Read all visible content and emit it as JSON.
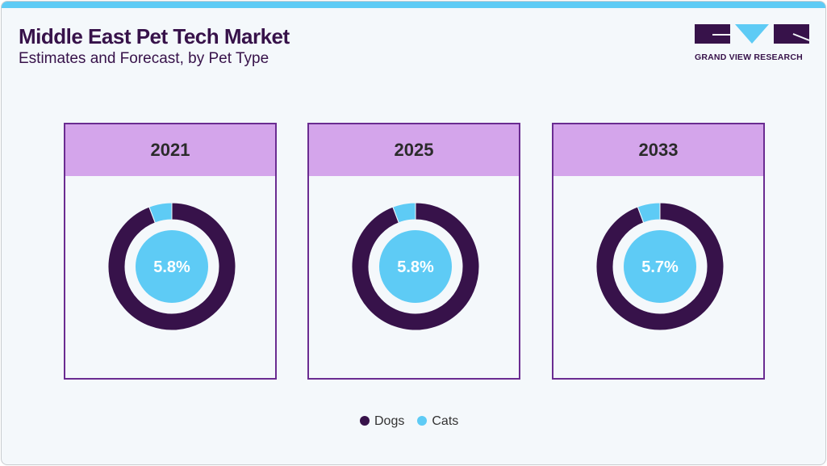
{
  "header": {
    "title": "Middle East Pet Tech Market",
    "subtitle": "Estimates and Forecast, by Pet Type"
  },
  "logo": {
    "text": "GRAND VIEW RESEARCH"
  },
  "colors": {
    "Dogs": "#37124a",
    "Cats": "#5ecbf5",
    "panel_header": "#d4a5eb",
    "panel_border": "#6a2c91"
  },
  "chart_data": [
    {
      "type": "pie",
      "title": "2021",
      "categories": [
        "Dogs",
        "Cats"
      ],
      "values": [
        94.2,
        5.8
      ],
      "center_label": "5.8%"
    },
    {
      "type": "pie",
      "title": "2025",
      "categories": [
        "Dogs",
        "Cats"
      ],
      "values": [
        94.2,
        5.8
      ],
      "center_label": "5.8%"
    },
    {
      "type": "pie",
      "title": "2033",
      "categories": [
        "Dogs",
        "Cats"
      ],
      "values": [
        94.3,
        5.7
      ],
      "center_label": "5.7%"
    }
  ],
  "legend": [
    {
      "label": "Dogs"
    },
    {
      "label": "Cats"
    }
  ]
}
